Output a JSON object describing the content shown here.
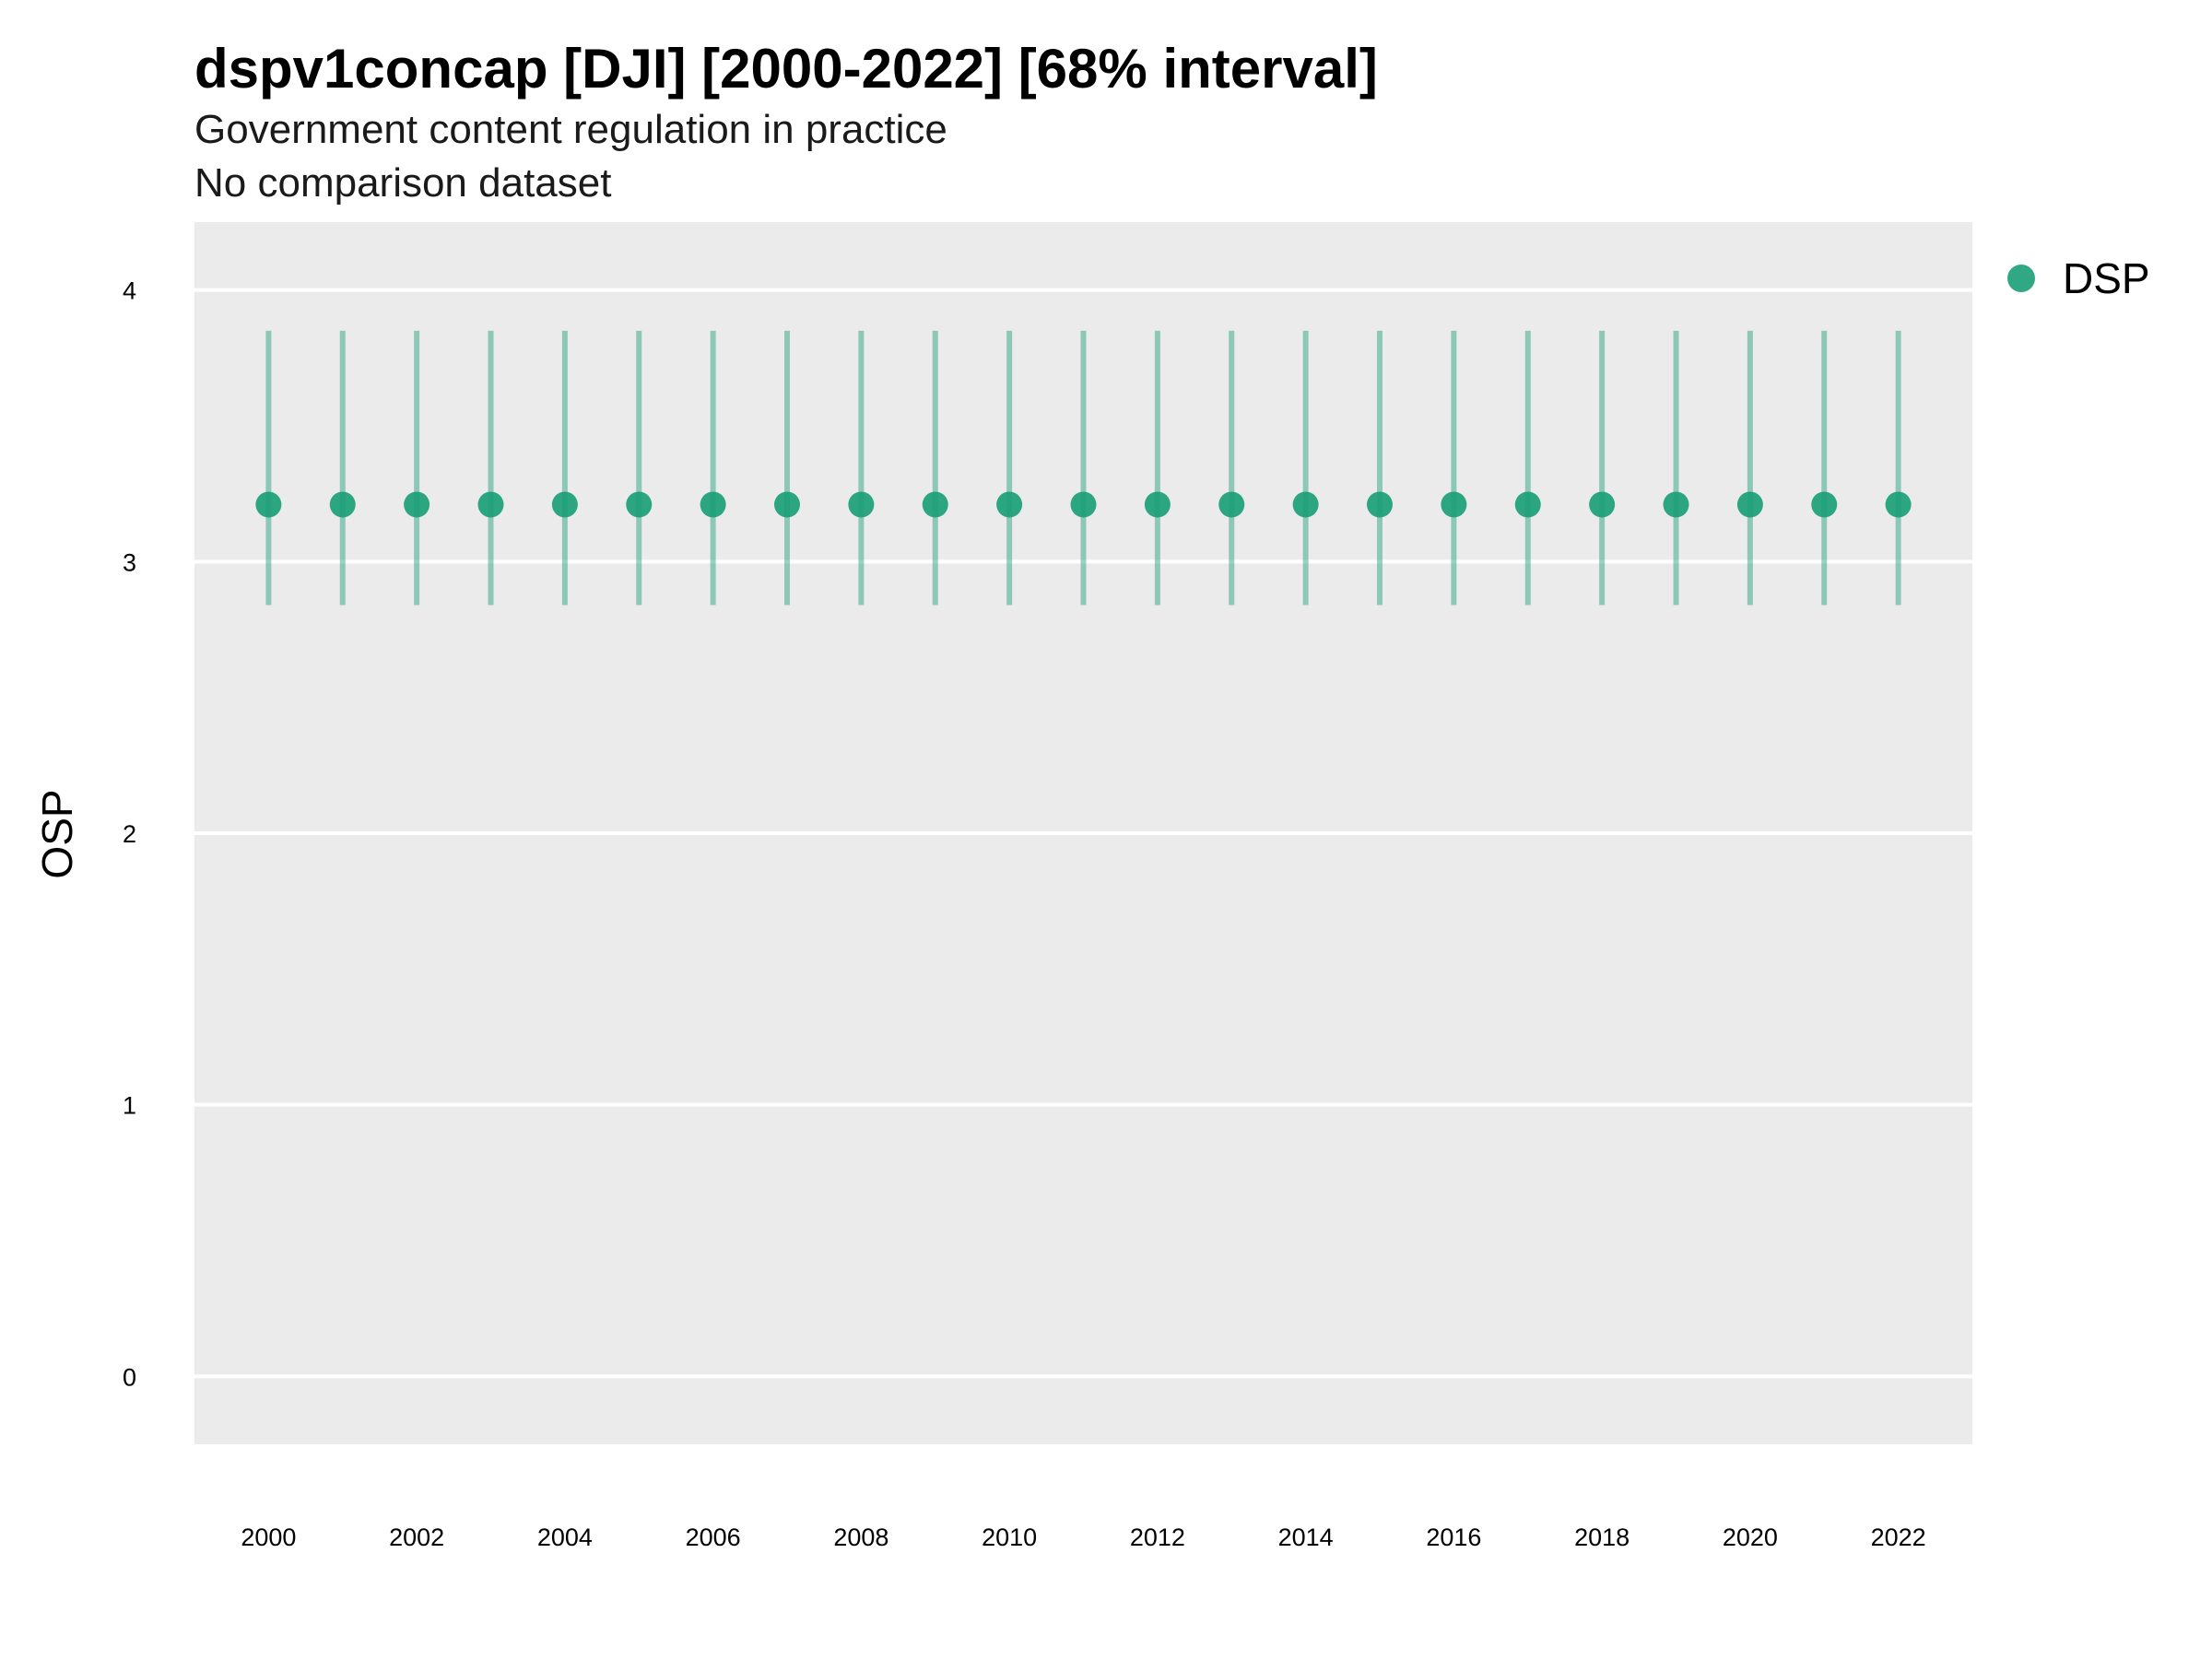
{
  "chart_data": {
    "type": "scatter",
    "title": "dspv1concap [DJI] [2000-2022] [68% interval]",
    "subtitle": "Government content regulation in practice",
    "caption_line": "No comparison dataset",
    "xlabel": "",
    "ylabel": "OSP",
    "ylim": [
      -0.25,
      4.25
    ],
    "xlim": [
      1999,
      2023
    ],
    "y_ticks": [
      0,
      1,
      2,
      3,
      4
    ],
    "x_ticks": [
      2000,
      2002,
      2004,
      2006,
      2008,
      2010,
      2012,
      2014,
      2016,
      2018,
      2020,
      2022
    ],
    "grid": true,
    "legend_position": "top-right",
    "colors": {
      "panel_bg": "#ebebeb",
      "grid": "#ffffff",
      "point": "#1b9e77"
    },
    "series": [
      {
        "name": "DSP",
        "x": [
          2000,
          2001,
          2002,
          2003,
          2004,
          2005,
          2006,
          2007,
          2008,
          2009,
          2010,
          2011,
          2012,
          2013,
          2014,
          2015,
          2016,
          2017,
          2018,
          2019,
          2020,
          2021,
          2022
        ],
        "y": [
          3.21,
          3.21,
          3.21,
          3.21,
          3.21,
          3.21,
          3.21,
          3.21,
          3.21,
          3.21,
          3.21,
          3.21,
          3.21,
          3.21,
          3.21,
          3.21,
          3.21,
          3.21,
          3.21,
          3.21,
          3.21,
          3.21,
          3.21
        ],
        "lower": [
          2.84,
          2.84,
          2.84,
          2.84,
          2.84,
          2.84,
          2.84,
          2.84,
          2.84,
          2.84,
          2.84,
          2.84,
          2.84,
          2.84,
          2.84,
          2.84,
          2.84,
          2.84,
          2.84,
          2.84,
          2.84,
          2.84,
          2.84
        ],
        "upper": [
          3.85,
          3.85,
          3.85,
          3.85,
          3.85,
          3.85,
          3.85,
          3.85,
          3.85,
          3.85,
          3.85,
          3.85,
          3.85,
          3.85,
          3.85,
          3.85,
          3.85,
          3.85,
          3.85,
          3.85,
          3.85,
          3.85,
          3.85
        ]
      }
    ]
  }
}
